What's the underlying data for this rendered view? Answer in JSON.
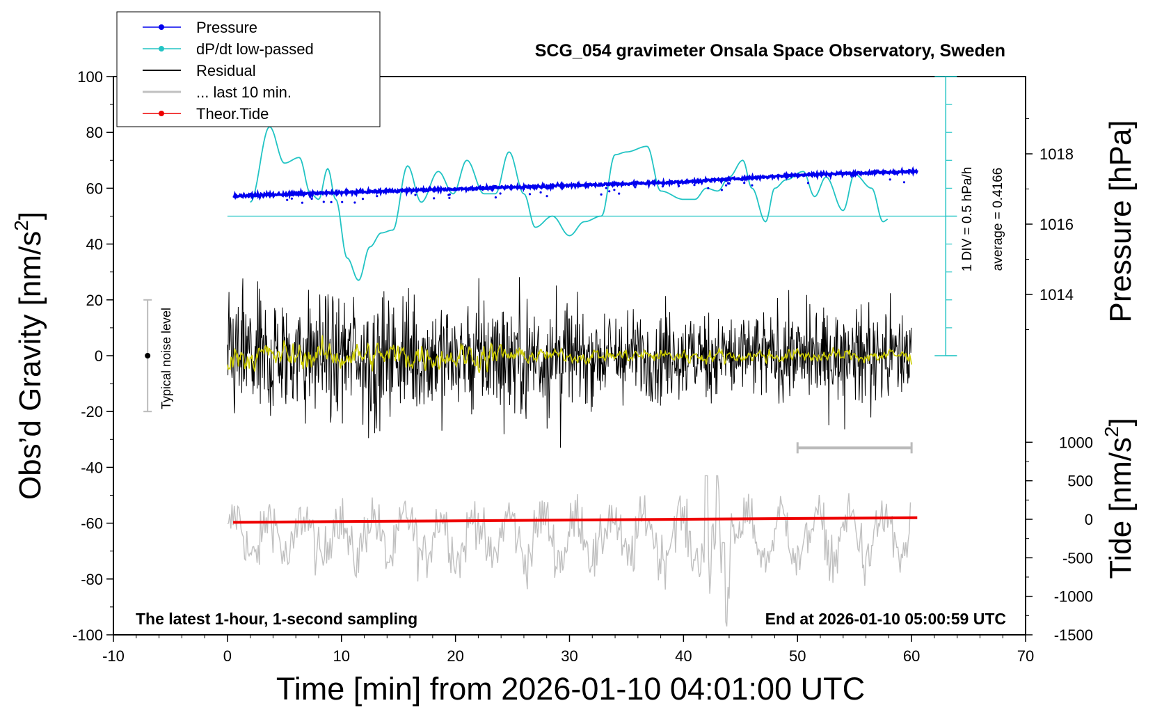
{
  "chart_data": {
    "type": "line",
    "title": "SCG_054 gravimeter Onsala Space Observatory, Sweden",
    "xlabel": "Time [min] from 2026-01-10 04:01:00 UTC",
    "ylabel_left": "Obs’d Gravity [nm/s",
    "ylabel_left_sup": "2",
    "ylabel_left_end": "]",
    "ylabel_right_pressure": "Pressure [hPa]",
    "ylabel_right_tide": "Tide [nm/s",
    "ylabel_right_tide_sup": "2",
    "ylabel_right_tide_end": "]",
    "xlim": [
      -10,
      70
    ],
    "ylim": [
      -100,
      100
    ],
    "x_ticks": [
      "-10",
      "0",
      "10",
      "20",
      "30",
      "40",
      "50",
      "60",
      "70"
    ],
    "y_ticks": [
      "-100",
      "-80",
      "-60",
      "-40",
      "-20",
      "0",
      "20",
      "40",
      "60",
      "80",
      "100"
    ],
    "pressure_axis": {
      "ticks": [
        "1014",
        "1016",
        "1018"
      ],
      "ylim": [
        1012,
        1020
      ]
    },
    "tide_axis": {
      "ticks": [
        "-1500",
        "-1000",
        "-500",
        "0",
        "500",
        "1000"
      ],
      "ylim": [
        -1500,
        1500
      ]
    },
    "legend": {
      "position": "top-left",
      "entries": [
        {
          "label": "Pressure",
          "color": "#0000ee",
          "marker": true
        },
        {
          "label": "dP/dt low-passed",
          "color": "#22c4c4",
          "marker": true
        },
        {
          "label": "Residual",
          "color": "#000000",
          "marker": false
        },
        {
          "label": "... last 10 min.",
          "color": "#c0c0c0",
          "marker": false
        },
        {
          "label": "Theor.Tide",
          "color": "#ee0000",
          "marker": true
        }
      ]
    },
    "annotations": {
      "noise": "Typical noise level",
      "div": "1 DIV = 0.5 hPa/h",
      "average": "average = 0.4166",
      "bottom_left": "The latest 1-hour, 1-second sampling",
      "bottom_right": "End at 2026-01-10 05:00:59 UTC"
    },
    "noise_bar": {
      "x": -7,
      "center": 0,
      "low": -20,
      "high": 20
    },
    "last10_bar": {
      "x_start": 50,
      "x_end": 60,
      "y": -33
    },
    "dpdt_baseline": 50,
    "series": [
      {
        "name": "Pressure",
        "unit": "hPa",
        "color": "#0000ee",
        "x": [
          0.5,
          10,
          20,
          30,
          40,
          50,
          60.5
        ],
        "values": [
          1016.8,
          1016.9,
          1017.0,
          1017.1,
          1017.2,
          1017.4,
          1017.5
        ]
      },
      {
        "name": "dP/dt low-passed",
        "unit": "nm/s2-scaled",
        "color": "#22c4c4",
        "x": [
          2,
          3.7,
          5,
          6.3,
          7.3,
          8,
          8.8,
          9.5,
          10.5,
          11.5,
          12.5,
          13.5,
          14.5,
          15.8,
          17,
          18.5,
          19.8,
          21,
          22.5,
          23.5,
          24.7,
          26,
          27,
          28.5,
          30,
          31.3,
          32.8,
          34,
          35,
          36.8,
          38,
          40,
          41,
          42,
          43,
          44,
          45.2,
          46,
          47.2,
          48,
          49,
          50.5,
          51.5,
          52.5,
          54,
          55,
          56.5,
          57.5,
          58
        ],
        "values": [
          55,
          82,
          69,
          71,
          58,
          56,
          67,
          56,
          35,
          27,
          39,
          44,
          45,
          68,
          55,
          66,
          58,
          70,
          58,
          58,
          73,
          58,
          46,
          50,
          43,
          48,
          50,
          72,
          73,
          75,
          59,
          56,
          56,
          60,
          59,
          64,
          70,
          60,
          48,
          60,
          63,
          66,
          57,
          64,
          52,
          65,
          60,
          48,
          49
        ]
      },
      {
        "name": "Residual",
        "unit": "nm/s2",
        "color": "#000000",
        "x": [
          0,
          60
        ],
        "values": [
          0,
          0
        ],
        "amplitude": [
          -33,
          37
        ]
      },
      {
        "name": "Residual low-passed",
        "unit": "nm/s2",
        "color": "#cccc00",
        "x": [
          0,
          60
        ],
        "values": [
          0,
          0
        ]
      },
      {
        "name": "... last 10 min.",
        "unit": "nm/s2 (offset)",
        "color": "#c0c0c0",
        "x": [
          0,
          60
        ],
        "values": [
          -65,
          -65
        ],
        "amplitude": [
          -97,
          -43
        ]
      },
      {
        "name": "Theor.Tide",
        "unit": "nm/s2",
        "color": "#ee0000",
        "x": [
          0.5,
          10,
          20,
          30,
          40,
          50,
          60.5
        ],
        "values": [
          -40,
          -30,
          -20,
          -10,
          0,
          10,
          20
        ]
      }
    ]
  }
}
